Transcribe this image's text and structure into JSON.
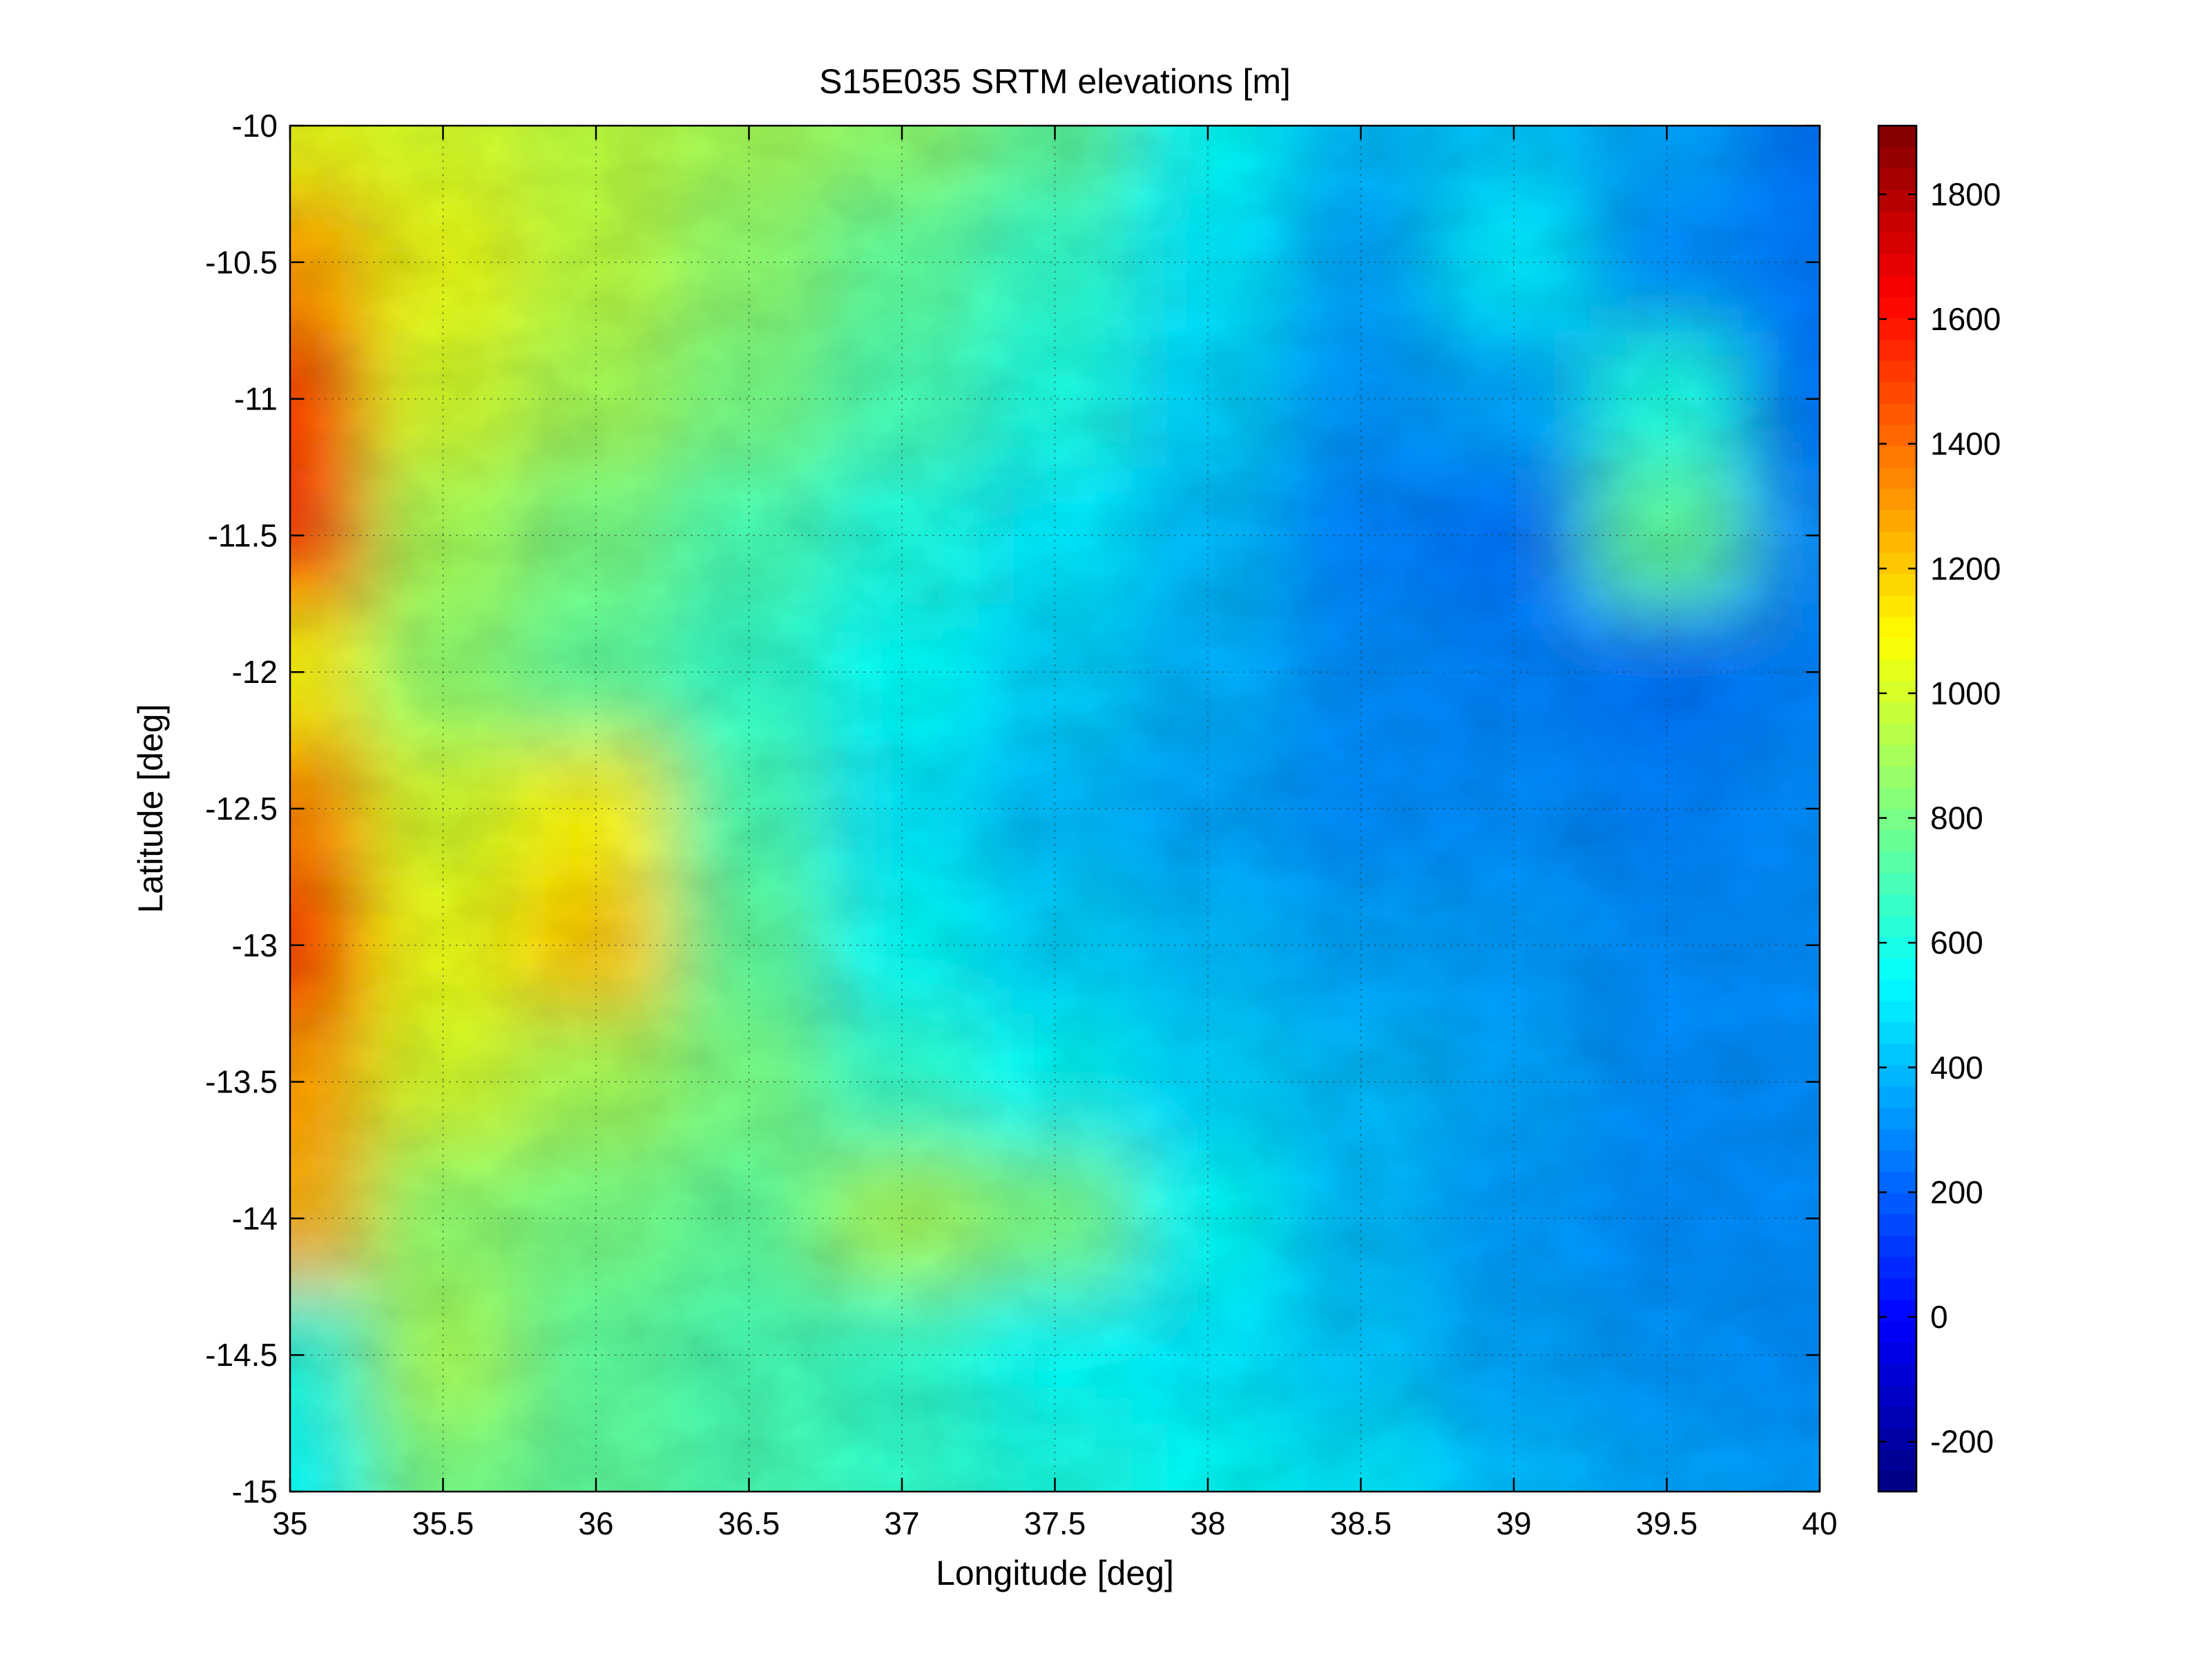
{
  "chart_data": {
    "type": "heatmap",
    "title": "S15E035 SRTM elevations [m]",
    "xlabel": "Longitude [deg]",
    "ylabel": "Latitude [deg]",
    "xlim": [
      35,
      40
    ],
    "ylim": [
      -15,
      -10
    ],
    "x_ticks": [
      35,
      35.5,
      36,
      36.5,
      37,
      37.5,
      38,
      38.5,
      39,
      39.5,
      40
    ],
    "x_tick_labels": [
      "35",
      "35.5",
      "36",
      "36.5",
      "37",
      "37.5",
      "38",
      "38.5",
      "39",
      "39.5",
      "40"
    ],
    "y_ticks": [
      -10,
      -10.5,
      -11,
      -11.5,
      -12,
      -12.5,
      -13,
      -13.5,
      -14,
      -14.5,
      -15
    ],
    "y_tick_labels": [
      "-10",
      "-10.5",
      "-11",
      "-11.5",
      "-12",
      "-12.5",
      "-13",
      "-13.5",
      "-14",
      "-14.5",
      "-15"
    ],
    "grid": true,
    "grid_style": "dotted",
    "colormap": "jet",
    "colorbar": {
      "range": [
        -280,
        1910
      ],
      "ticks": [
        -200,
        0,
        200,
        400,
        600,
        800,
        1000,
        1200,
        1400,
        1600,
        1800
      ],
      "tick_labels": [
        "-200",
        "0",
        "200",
        "400",
        "600",
        "800",
        "1000",
        "1200",
        "1400",
        "1600",
        "1800"
      ],
      "placement": "right"
    },
    "elevation_grid": {
      "lon": [
        35.0,
        35.5,
        36.0,
        36.5,
        37.0,
        37.5,
        38.0,
        38.5,
        39.0,
        39.5,
        40.0
      ],
      "lat": [
        -10.0,
        -10.5,
        -11.0,
        -11.5,
        -12.0,
        -12.5,
        -13.0,
        -13.5,
        -14.0,
        -14.5,
        -15.0
      ],
      "values": [
        [
          1050,
          1000,
          950,
          900,
          850,
          750,
          550,
          400,
          420,
          350,
          250
        ],
        [
          1300,
          1050,
          950,
          850,
          750,
          650,
          500,
          350,
          500,
          300,
          260
        ],
        [
          1500,
          1000,
          900,
          800,
          700,
          600,
          450,
          320,
          350,
          600,
          250
        ],
        [
          1500,
          900,
          800,
          700,
          600,
          500,
          400,
          280,
          250,
          750,
          300
        ],
        [
          1100,
          850,
          750,
          650,
          550,
          450,
          380,
          300,
          280,
          250,
          280
        ],
        [
          1350,
          1000,
          1100,
          700,
          500,
          400,
          350,
          300,
          300,
          280,
          300
        ],
        [
          1500,
          1050,
          1200,
          750,
          550,
          450,
          400,
          350,
          330,
          300,
          300
        ],
        [
          1300,
          1000,
          900,
          800,
          650,
          550,
          450,
          400,
          350,
          300,
          300
        ],
        [
          1250,
          850,
          800,
          750,
          900,
          800,
          550,
          400,
          330,
          300,
          300
        ],
        [
          600,
          900,
          750,
          700,
          650,
          550,
          500,
          420,
          350,
          320,
          300
        ],
        [
          550,
          800,
          750,
          700,
          650,
          600,
          550,
          500,
          400,
          350,
          330
        ]
      ]
    }
  }
}
